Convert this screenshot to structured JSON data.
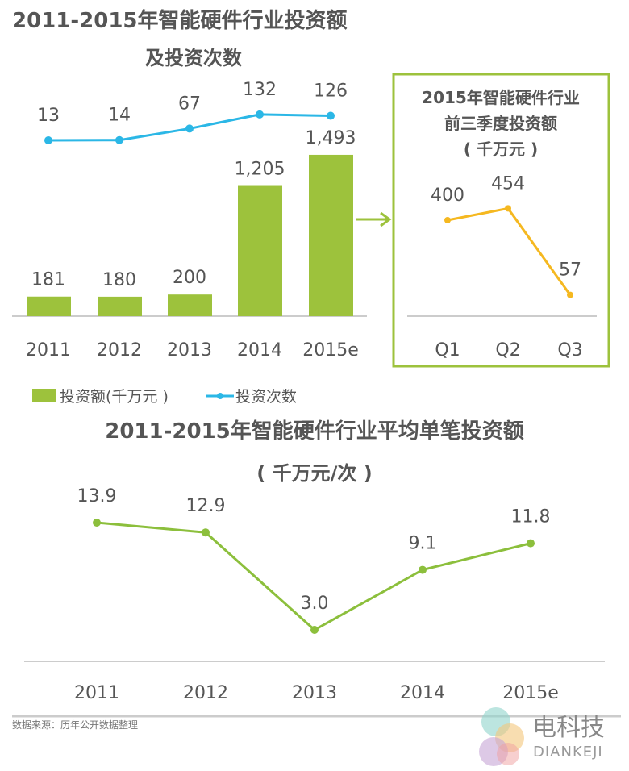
{
  "chart_data": [
    {
      "type": "bar+line",
      "title": "2011-2015年智能硬件行业投资额",
      "subtitle": "及投资次数",
      "categories": [
        "2011",
        "2012",
        "2013",
        "2014",
        "2015e"
      ],
      "series": [
        {
          "name": "投资额(千万元 )",
          "type": "bar",
          "color": "#9dc23c",
          "values": [
            181,
            180,
            200,
            1205,
            1493
          ],
          "labels": [
            "181",
            "180",
            "200",
            "1,205",
            "1,493"
          ]
        },
        {
          "name": "投资次数",
          "type": "line",
          "color": "#2bb7e6",
          "values": [
            13,
            14,
            67,
            132,
            126
          ],
          "labels": [
            "13",
            "14",
            "67",
            "132",
            "126"
          ]
        }
      ],
      "legend": "bottom-left",
      "grid": false
    },
    {
      "type": "line",
      "title": [
        "2015年智能硬件行业",
        "前三季度投资额",
        "( 千万元 )"
      ],
      "categories": [
        "Q1",
        "Q2",
        "Q3"
      ],
      "series": [
        {
          "color": "#f5b820",
          "values": [
            400,
            454,
            57
          ],
          "labels": [
            "400",
            "454",
            "57"
          ]
        }
      ],
      "border_color": "#9dc23c",
      "grid": false
    },
    {
      "type": "line",
      "title": "2011-2015年智能硬件行业平均单笔投资额",
      "subtitle": "( 千万元/次 )",
      "categories": [
        "2011",
        "2012",
        "2013",
        "2014",
        "2015e"
      ],
      "series": [
        {
          "color": "#8cbf3c",
          "values": [
            13.9,
            12.9,
            3.0,
            9.1,
            11.8
          ],
          "labels": [
            "13.9",
            "12.9",
            "3.0",
            "9.1",
            "11.8"
          ]
        }
      ],
      "grid": false
    }
  ],
  "source": "数据来源：历年公开数据整理",
  "watermark": {
    "cn": "电科技",
    "en": "DIANKEJI"
  }
}
